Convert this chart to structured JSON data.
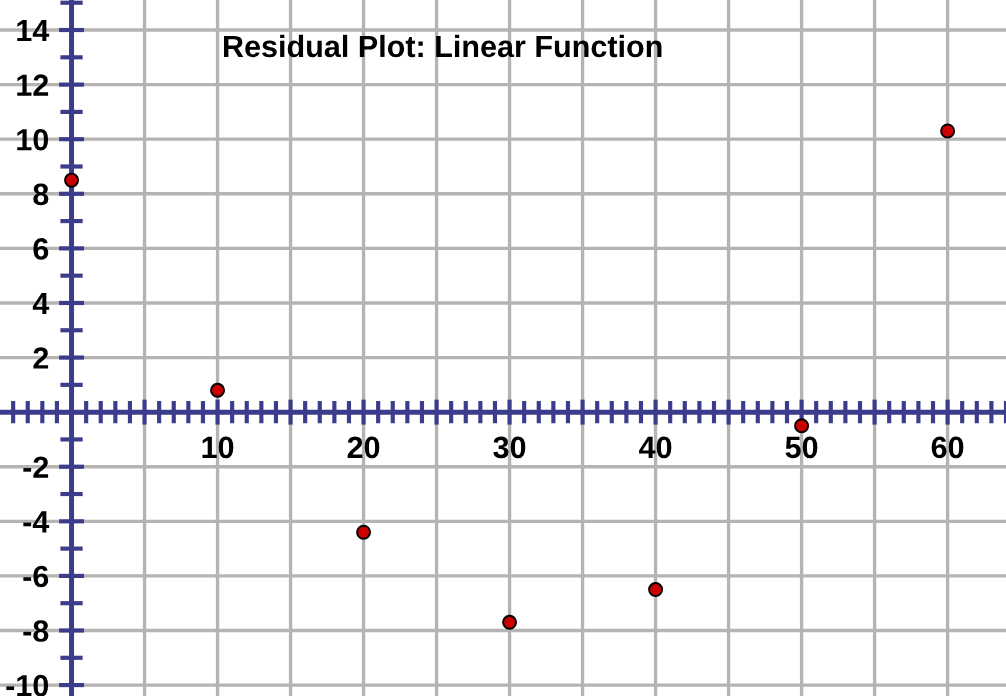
{
  "chart_data": {
    "type": "scatter",
    "title": "Residual Plot: Linear Function",
    "x": [
      0,
      10,
      20,
      30,
      40,
      50,
      60
    ],
    "series": [
      {
        "color": "#cc0000",
        "values": [
          8.5,
          0.8,
          -4.4,
          -7.7,
          -6.5,
          -0.5,
          10.3
        ]
      }
    ],
    "marker": "circle",
    "xlim": [
      -4.9,
      64
    ],
    "ylim": [
      -10.4,
      15.1
    ],
    "xticks": [
      {
        "value": 5,
        "label": null
      },
      10,
      {
        "value": 15,
        "label": null
      },
      20,
      {
        "value": 25,
        "label": null
      },
      30,
      {
        "value": 35,
        "label": null
      },
      40,
      {
        "value": 45,
        "label": null
      },
      50,
      {
        "value": 55,
        "label": null
      },
      60
    ],
    "yticks": [
      -10,
      -8,
      -6,
      -4,
      -2,
      {
        "value": 0,
        "label": null
      },
      2,
      4,
      6,
      8,
      10,
      12,
      14
    ],
    "grid": true,
    "ref_lines": [
      {
        "axis": "x",
        "value": 0,
        "color": "#3c3c8c"
      }
    ]
  }
}
